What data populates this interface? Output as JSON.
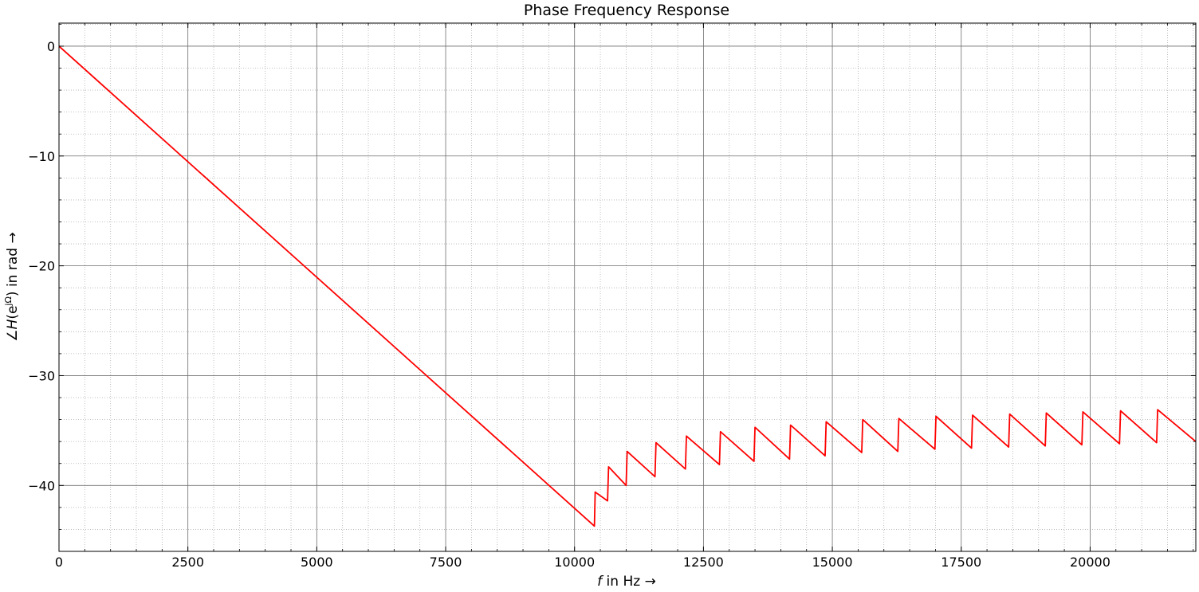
{
  "chart_data": {
    "type": "line",
    "title": "Phase Frequency Response",
    "xlabel": {
      "var": "f",
      "rest": " in Hz →"
    },
    "ylabel": {
      "pre": "∠",
      "var": "H",
      "mid": "(e",
      "sup": "jΩ",
      "post": ") in rad  →"
    },
    "xlim": [
      0,
      22050
    ],
    "ylim": [
      -46,
      2.1
    ],
    "xticks": [
      0,
      2500,
      5000,
      7500,
      10000,
      12500,
      15000,
      17500,
      20000
    ],
    "xtick_labels": [
      "0",
      "2500",
      "5000",
      "7500",
      "10000",
      "12500",
      "15000",
      "17500",
      "20000"
    ],
    "yticks": [
      0,
      -10,
      -20,
      -30,
      -40
    ],
    "ytick_labels": [
      "0",
      "−10",
      "−20",
      "−30",
      "−40"
    ],
    "grid": true,
    "series": [
      {
        "color": "#ff0000",
        "points": [
          [
            0,
            0
          ],
          [
            10385,
            -43.7
          ],
          [
            10400,
            -40.6
          ],
          [
            10640,
            -41.4
          ],
          [
            10660,
            -38.3
          ],
          [
            11000,
            -40.0
          ],
          [
            11020,
            -36.9
          ],
          [
            11560,
            -39.2
          ],
          [
            11580,
            -36.1
          ],
          [
            12150,
            -38.5
          ],
          [
            12170,
            -35.5
          ],
          [
            12810,
            -38.1
          ],
          [
            12830,
            -35.1
          ],
          [
            13480,
            -37.8
          ],
          [
            13500,
            -34.7
          ],
          [
            14170,
            -37.6
          ],
          [
            14190,
            -34.5
          ],
          [
            14860,
            -37.3
          ],
          [
            14880,
            -34.2
          ],
          [
            15570,
            -37.0
          ],
          [
            15590,
            -34.0
          ],
          [
            16270,
            -36.9
          ],
          [
            16290,
            -33.9
          ],
          [
            16990,
            -36.7
          ],
          [
            17010,
            -33.7
          ],
          [
            17700,
            -36.6
          ],
          [
            17720,
            -33.6
          ],
          [
            18420,
            -36.5
          ],
          [
            18440,
            -33.5
          ],
          [
            19130,
            -36.4
          ],
          [
            19150,
            -33.4
          ],
          [
            19840,
            -36.3
          ],
          [
            19860,
            -33.3
          ],
          [
            20570,
            -36.2
          ],
          [
            20590,
            -33.2
          ],
          [
            21290,
            -36.1
          ],
          [
            21310,
            -33.1
          ],
          [
            22050,
            -36.0
          ]
        ]
      }
    ]
  }
}
